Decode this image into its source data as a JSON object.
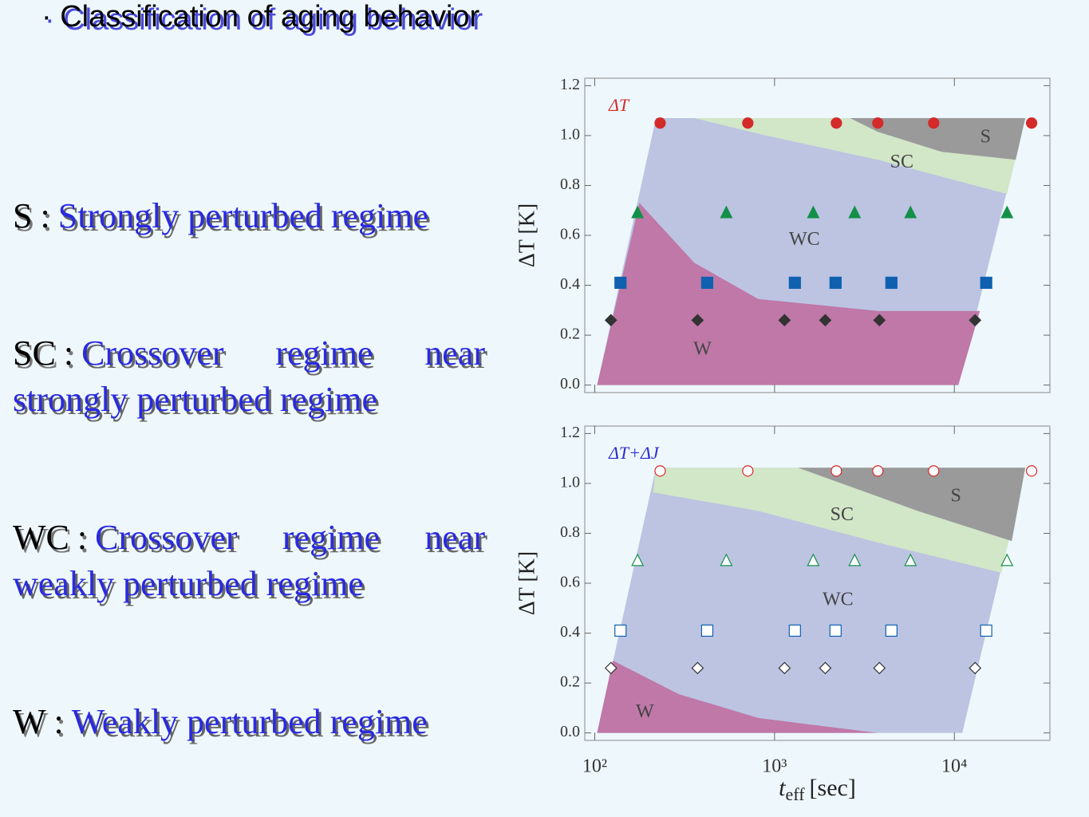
{
  "slide": {
    "title": "· Classification of aging behavior",
    "regimes": [
      {
        "code": "S",
        "separator": ":",
        "description": "Strongly perturbed regime"
      },
      {
        "code": "SC",
        "separator": ":",
        "description": "Crossover regime near strongly perturbed regime"
      },
      {
        "code": "WC",
        "separator": ":",
        "description": "Crossover regime near weakly perturbed regime"
      },
      {
        "code": "W",
        "separator": ":",
        "description": "Weakly perturbed regime"
      }
    ]
  },
  "chart_data": [
    {
      "type": "scatter",
      "annotation": "ΔT",
      "annotation_color": "#d42a2a",
      "y_label": "ΔT [K]",
      "x_log": true,
      "show_xtick_labels": false,
      "xlim": [
        88,
        34000
      ],
      "ylim": [
        -0.03,
        1.23
      ],
      "xticks": [
        {
          "value": 100,
          "label": "10²"
        },
        {
          "value": 1000,
          "label": "10³"
        },
        {
          "value": 10000,
          "label": "10⁴"
        }
      ],
      "yticks": [
        {
          "value": 0,
          "label": "0.0"
        },
        0.2,
        0.4,
        0.6,
        0.8,
        {
          "value": 1,
          "label": "1.0"
        },
        1.2
      ],
      "regions": [
        {
          "label": "WC",
          "color": "#bcc4e2",
          "label_x": 1467,
          "label_y": 0.58,
          "x": [
            103,
            219,
            24800,
            10520
          ],
          "y": [
            0,
            1.07,
            1.07,
            0
          ]
        },
        {
          "label": "W",
          "color": "#bf78a8",
          "label_x": 397,
          "label_y": 0.14,
          "x": [
            103,
            177,
            358,
            811,
            3753,
            13870,
            10520
          ],
          "y": [
            0,
            0.73,
            0.49,
            0.345,
            0.297,
            0.297,
            0
          ]
        },
        {
          "label": "SC",
          "color": "#d2e6c8",
          "label_x": 5100,
          "label_y": 0.89,
          "x": [
            358,
            24800,
            19630,
            3753,
            898
          ],
          "y": [
            1.07,
            1.07,
            0.766,
            0.903,
            1.0
          ]
        },
        {
          "label": "S",
          "color": "#9a9a9a",
          "label_x": 14900,
          "label_y": 0.99,
          "x": [
            2625,
            24800,
            21950,
            8490,
            3753
          ],
          "y": [
            1.07,
            1.07,
            0.903,
            0.935,
            1.015
          ]
        }
      ],
      "series": [
        {
          "color": "#d42a2a",
          "marker": "circle",
          "filled": true,
          "x": [
            231,
            710,
            2207,
            3753,
            7674,
            26900
          ],
          "values": [
            1.05,
            1.05,
            1.05,
            1.05,
            1.05,
            1.05
          ]
        },
        {
          "color": "#139048",
          "marker": "triangle",
          "filled": true,
          "x": [
            173,
            539,
            1641,
            2790,
            5703,
            19630
          ],
          "values": [
            0.69,
            0.69,
            0.69,
            0.69,
            0.69,
            0.69
          ]
        },
        {
          "color": "#1060b0",
          "marker": "square",
          "filled": true,
          "x": [
            139,
            422,
            1297,
            2184,
            4465,
            15040
          ],
          "values": [
            0.41,
            0.41,
            0.41,
            0.41,
            0.41,
            0.41
          ]
        },
        {
          "color": "#333333",
          "marker": "diamond",
          "filled": true,
          "x": [
            123,
            373,
            1136,
            1914,
            3830,
            13040
          ],
          "values": [
            0.26,
            0.26,
            0.26,
            0.26,
            0.26,
            0.26
          ]
        }
      ]
    },
    {
      "type": "scatter",
      "annotation": "ΔT+ΔJ",
      "annotation_color": "#2a2ad0",
      "y_label": "ΔT [K]",
      "x_label": {
        "main": "t",
        "sub": "eff",
        "unit": "[sec]"
      },
      "x_log": true,
      "show_xtick_labels": true,
      "xlim": [
        88,
        34000
      ],
      "ylim": [
        -0.03,
        1.23
      ],
      "xticks": [
        {
          "value": 100,
          "label": "10²"
        },
        {
          "value": 1000,
          "label": "10³"
        },
        {
          "value": 10000,
          "label": "10⁴"
        }
      ],
      "yticks": [
        {
          "value": 0,
          "label": "0.0"
        },
        0.2,
        0.4,
        0.6,
        0.8,
        {
          "value": 1,
          "label": "1.0"
        },
        1.2
      ],
      "regions": [
        {
          "label": "WC",
          "color": "#bcc4e2",
          "label_x": 2253,
          "label_y": 0.53,
          "x": [
            103,
            219,
            24800,
            11070
          ],
          "y": [
            0,
            1.063,
            1.063,
            0
          ]
        },
        {
          "label": "W",
          "color": "#bf78a8",
          "label_x": 190,
          "label_y": 0.08,
          "x": [
            103,
            126,
            292,
            811,
            3753
          ],
          "y": [
            0,
            0.29,
            0.156,
            0.06,
            0
          ]
        },
        {
          "label": "SC",
          "color": "#d2e6c8",
          "label_x": 2371,
          "label_y": 0.87,
          "x": [
            211,
            219,
            24800,
            18270,
            3753,
            811
          ],
          "y": [
            0.964,
            1.063,
            1.063,
            0.642,
            0.763,
            0.89
          ]
        },
        {
          "label": "S",
          "color": "#9a9a9a",
          "label_x": 10200,
          "label_y": 0.945,
          "x": [
            1352,
            24800,
            20860,
            6250
          ],
          "y": [
            1.063,
            1.063,
            0.769,
            0.89
          ]
        }
      ],
      "series": [
        {
          "color": "#d42a2a",
          "marker": "circle",
          "filled": false,
          "x": [
            231,
            710,
            2207,
            3753,
            7674,
            26900
          ],
          "values": [
            1.05,
            1.05,
            1.05,
            1.05,
            1.05,
            1.05
          ]
        },
        {
          "color": "#139048",
          "marker": "triangle",
          "filled": false,
          "x": [
            173,
            539,
            1641,
            2790,
            5703,
            19630
          ],
          "values": [
            0.69,
            0.69,
            0.69,
            0.69,
            0.69,
            0.69
          ]
        },
        {
          "color": "#1060b0",
          "marker": "square",
          "filled": false,
          "x": [
            139,
            422,
            1297,
            2184,
            4465,
            15040
          ],
          "values": [
            0.41,
            0.41,
            0.41,
            0.41,
            0.41,
            0.41
          ]
        },
        {
          "color": "#333333",
          "marker": "diamond",
          "filled": false,
          "x": [
            123,
            373,
            1136,
            1914,
            3830,
            13040
          ],
          "values": [
            0.26,
            0.26,
            0.26,
            0.26,
            0.26,
            0.26
          ]
        }
      ]
    }
  ]
}
